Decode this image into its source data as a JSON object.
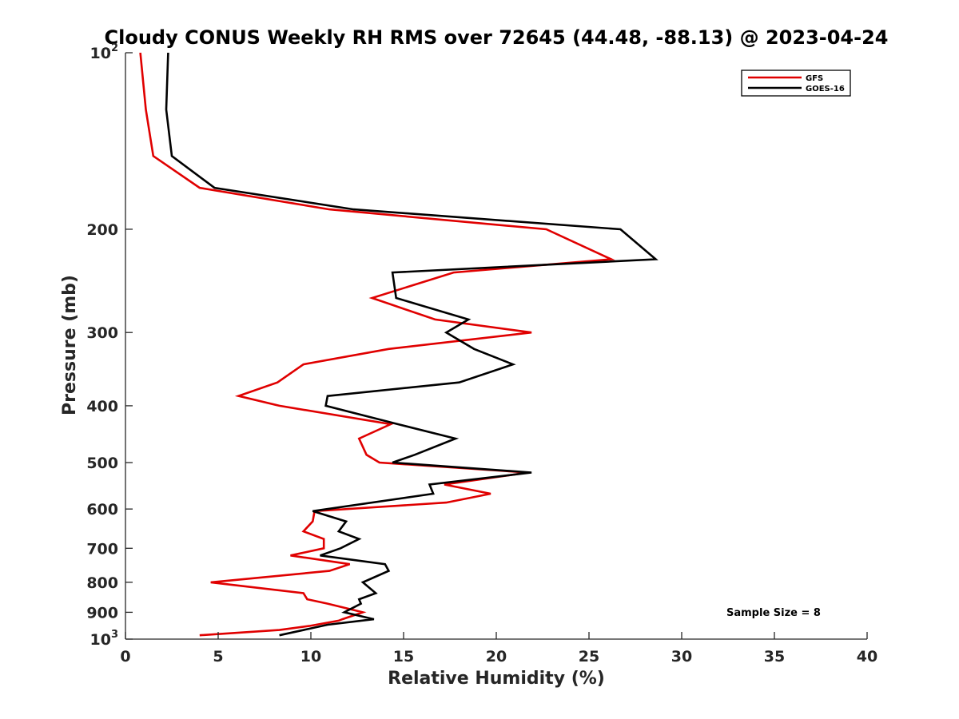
{
  "chart_data": {
    "type": "line",
    "title": "Cloudy CONUS Weekly RH RMS over 72645 (44.48, -88.13) @ 2023-04-24",
    "xlabel": "Relative Humidity (%)",
    "ylabel": "Pressure (mb)",
    "xlim": [
      0,
      40
    ],
    "ylim": [
      100,
      1000
    ],
    "y_scale": "log",
    "y_reversed": true,
    "x_ticks": [
      "0",
      "5",
      "10",
      "15",
      "20",
      "25",
      "30",
      "35",
      "40"
    ],
    "y_ticks": [
      {
        "value": 100,
        "base": "10",
        "exp": "2"
      },
      {
        "value": 200,
        "label": "200"
      },
      {
        "value": 300,
        "label": "300"
      },
      {
        "value": 400,
        "label": "400"
      },
      {
        "value": 500,
        "label": "500"
      },
      {
        "value": 600,
        "label": "600"
      },
      {
        "value": 700,
        "label": "700"
      },
      {
        "value": 800,
        "label": "800"
      },
      {
        "value": 900,
        "label": "900"
      },
      {
        "value": 1000,
        "base": "10",
        "exp": "3"
      }
    ],
    "grid": false,
    "legend_position": "top-right",
    "annotation": "Sample Size = 8",
    "series": [
      {
        "name": "GFS",
        "color": "#e00000",
        "points": [
          [
            0.8,
            100
          ],
          [
            1.1,
            125
          ],
          [
            1.5,
            150
          ],
          [
            4.0,
            170
          ],
          [
            11.0,
            185
          ],
          [
            22.7,
            200
          ],
          [
            26.2,
            225
          ],
          [
            17.7,
            237
          ],
          [
            13.3,
            262
          ],
          [
            16.7,
            285
          ],
          [
            21.9,
            300
          ],
          [
            14.2,
            320
          ],
          [
            9.6,
            340
          ],
          [
            8.2,
            365
          ],
          [
            6.1,
            385
          ],
          [
            8.3,
            400
          ],
          [
            14.3,
            430
          ],
          [
            12.6,
            455
          ],
          [
            13.0,
            485
          ],
          [
            13.7,
            500
          ],
          [
            21.7,
            520
          ],
          [
            17.2,
            545
          ],
          [
            19.7,
            565
          ],
          [
            17.3,
            585
          ],
          [
            10.2,
            605
          ],
          [
            10.1,
            630
          ],
          [
            9.6,
            655
          ],
          [
            10.7,
            675
          ],
          [
            10.7,
            700
          ],
          [
            8.9,
            720
          ],
          [
            12.1,
            745
          ],
          [
            11.0,
            765
          ],
          [
            4.6,
            800
          ],
          [
            9.6,
            835
          ],
          [
            9.8,
            855
          ],
          [
            10.9,
            870
          ],
          [
            12.8,
            900
          ],
          [
            11.7,
            925
          ],
          [
            11.5,
            930
          ],
          [
            9.9,
            950
          ],
          [
            8.3,
            965
          ],
          [
            4.0,
            985
          ]
        ]
      },
      {
        "name": "GOES-16",
        "color": "#000000",
        "points": [
          [
            2.3,
            100
          ],
          [
            2.2,
            125
          ],
          [
            2.5,
            150
          ],
          [
            4.8,
            170
          ],
          [
            12.3,
            185
          ],
          [
            26.7,
            200
          ],
          [
            28.6,
            225
          ],
          [
            14.4,
            237
          ],
          [
            14.6,
            262
          ],
          [
            18.5,
            285
          ],
          [
            17.3,
            300
          ],
          [
            18.8,
            320
          ],
          [
            20.9,
            340
          ],
          [
            18.0,
            365
          ],
          [
            10.9,
            385
          ],
          [
            10.8,
            400
          ],
          [
            14.7,
            430
          ],
          [
            17.8,
            455
          ],
          [
            15.6,
            485
          ],
          [
            14.4,
            500
          ],
          [
            21.9,
            520
          ],
          [
            16.4,
            545
          ],
          [
            16.6,
            565
          ],
          [
            10.1,
            605
          ],
          [
            11.9,
            630
          ],
          [
            11.5,
            655
          ],
          [
            12.6,
            675
          ],
          [
            11.6,
            700
          ],
          [
            10.5,
            720
          ],
          [
            14.0,
            745
          ],
          [
            14.2,
            765
          ],
          [
            12.8,
            800
          ],
          [
            13.5,
            835
          ],
          [
            12.6,
            855
          ],
          [
            12.7,
            870
          ],
          [
            11.8,
            900
          ],
          [
            13.4,
            925
          ],
          [
            10.9,
            945
          ],
          [
            8.3,
            985
          ]
        ]
      }
    ]
  }
}
